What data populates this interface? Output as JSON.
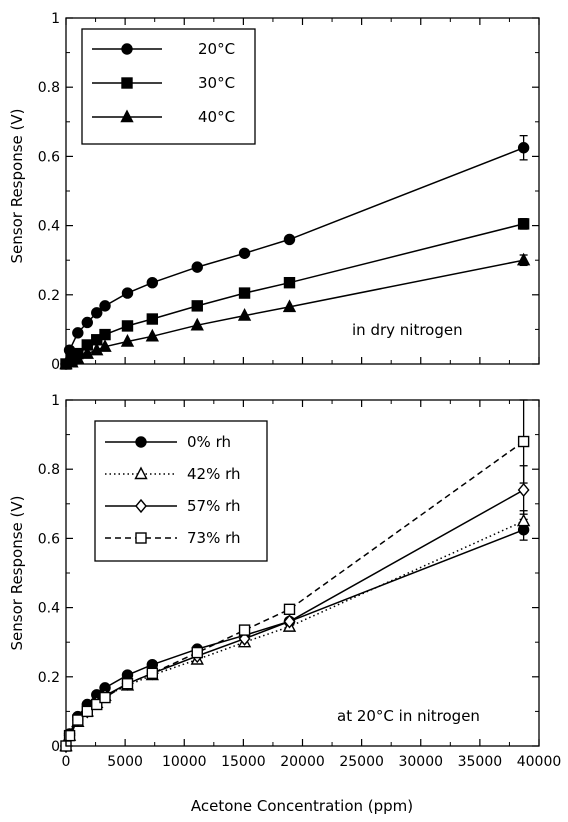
{
  "chart_data": [
    {
      "type": "line",
      "title": "",
      "xlabel": "",
      "ylabel": "Sensor Response (V)",
      "annotation": "in dry nitrogen",
      "xlim": [
        0,
        40000
      ],
      "ylim": [
        0,
        1
      ],
      "y_tick_labels": [
        "0",
        "0.2",
        "0.4",
        "0.6",
        "0.8",
        "1"
      ],
      "grid": false,
      "legend_position": "top-left",
      "series": [
        {
          "name": "20°C",
          "marker": "filled-circle",
          "line": "solid",
          "color": "#000000",
          "x": [
            0,
            300,
            1000,
            1800,
            2600,
            3300,
            5200,
            7300,
            11100,
            15100,
            18900,
            38700
          ],
          "y": [
            0,
            0.04,
            0.09,
            0.12,
            0.148,
            0.168,
            0.205,
            0.235,
            0.28,
            0.32,
            0.36,
            0.625
          ],
          "error": [
            0,
            0,
            0,
            0,
            0,
            0,
            0,
            0,
            0,
            0,
            0,
            0.035
          ]
        },
        {
          "name": "30°C",
          "marker": "filled-square",
          "line": "solid",
          "color": "#000000",
          "x": [
            0,
            500,
            1000,
            1800,
            2600,
            3300,
            5200,
            7300,
            11100,
            15100,
            18900,
            38700
          ],
          "y": [
            0,
            0.01,
            0.03,
            0.055,
            0.07,
            0.085,
            0.11,
            0.13,
            0.168,
            0.205,
            0.235,
            0.405
          ],
          "error": [
            0,
            0,
            0,
            0,
            0,
            0,
            0,
            0,
            0,
            0,
            0,
            0.015
          ]
        },
        {
          "name": "40°C",
          "marker": "filled-triangle",
          "line": "solid",
          "color": "#000000",
          "x": [
            0,
            500,
            1000,
            1800,
            2600,
            3300,
            5200,
            7300,
            11100,
            15100,
            18900,
            38700
          ],
          "y": [
            0,
            0.005,
            0.015,
            0.03,
            0.04,
            0.05,
            0.065,
            0.08,
            0.112,
            0.14,
            0.165,
            0.3
          ],
          "error": [
            0,
            0,
            0,
            0,
            0,
            0,
            0,
            0,
            0,
            0,
            0,
            0.015
          ]
        }
      ]
    },
    {
      "type": "line",
      "title": "",
      "xlabel": "Acetone Concentration (ppm)",
      "ylabel": "Sensor Response (V)",
      "annotation": "at 20°C in nitrogen",
      "xlim": [
        0,
        40000
      ],
      "ylim": [
        0,
        1
      ],
      "x_tick_labels": [
        "0",
        "5000",
        "10000",
        "15000",
        "20000",
        "25000",
        "30000",
        "35000",
        "40000"
      ],
      "y_tick_labels": [
        "0",
        "0.2",
        "0.4",
        "0.6",
        "0.8",
        "1"
      ],
      "grid": false,
      "legend_position": "top-left",
      "series": [
        {
          "name": "0% rh",
          "marker": "filled-circle",
          "line": "solid",
          "color": "#000000",
          "x": [
            0,
            300,
            1000,
            1800,
            2600,
            3300,
            5200,
            7300,
            11100,
            15100,
            18900,
            38700
          ],
          "y": [
            0,
            0.035,
            0.085,
            0.12,
            0.148,
            0.168,
            0.205,
            0.235,
            0.28,
            0.32,
            0.36,
            0.625
          ],
          "error": [
            0,
            0,
            0,
            0,
            0,
            0,
            0,
            0,
            0,
            0,
            0,
            0.03
          ]
        },
        {
          "name": "42% rh",
          "marker": "open-triangle",
          "line": "dotted",
          "color": "#000000",
          "x": [
            0,
            300,
            1000,
            1800,
            2600,
            3300,
            5200,
            7300,
            11100,
            15100,
            18900,
            38700
          ],
          "y": [
            0,
            0.03,
            0.07,
            0.1,
            0.125,
            0.145,
            0.175,
            0.205,
            0.25,
            0.3,
            0.345,
            0.65
          ],
          "error": [
            0,
            0,
            0,
            0,
            0,
            0,
            0,
            0,
            0,
            0,
            0,
            0.03
          ]
        },
        {
          "name": "57% rh",
          "marker": "open-diamond",
          "line": "solid",
          "color": "#000000",
          "x": [
            0,
            300,
            1000,
            1800,
            2600,
            3300,
            5200,
            7300,
            11100,
            15100,
            18900,
            38700
          ],
          "y": [
            0,
            0.03,
            0.075,
            0.1,
            0.125,
            0.145,
            0.18,
            0.21,
            0.26,
            0.31,
            0.36,
            0.74
          ],
          "error": [
            0,
            0,
            0,
            0,
            0,
            0,
            0,
            0,
            0,
            0,
            0,
            0.07
          ]
        },
        {
          "name": "73% rh",
          "marker": "open-square",
          "line": "dashed",
          "color": "#000000",
          "x": [
            0,
            300,
            1000,
            1800,
            2600,
            3300,
            5200,
            7300,
            11100,
            15100,
            18900,
            38700
          ],
          "y": [
            0,
            0.03,
            0.075,
            0.1,
            0.12,
            0.14,
            0.18,
            0.21,
            0.27,
            0.335,
            0.395,
            0.88
          ],
          "error": [
            0,
            0,
            0,
            0,
            0,
            0,
            0,
            0,
            0,
            0,
            0,
            0.12
          ]
        }
      ]
    }
  ]
}
